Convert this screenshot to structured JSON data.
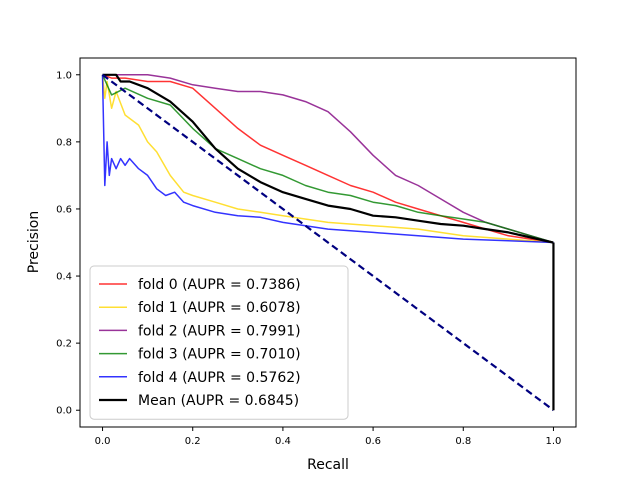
{
  "chart_data": {
    "type": "line",
    "title": "",
    "xlabel": "Recall",
    "ylabel": "Precision",
    "xlim": [
      -0.05,
      1.05
    ],
    "ylim": [
      -0.05,
      1.05
    ],
    "xticks": [
      0.0,
      0.2,
      0.4,
      0.6,
      0.8,
      1.0
    ],
    "yticks": [
      0.0,
      0.2,
      0.4,
      0.6,
      0.8,
      1.0
    ],
    "xtick_labels": [
      "0.0",
      "0.2",
      "0.4",
      "0.6",
      "0.8",
      "1.0"
    ],
    "ytick_labels": [
      "0.0",
      "0.2",
      "0.4",
      "0.6",
      "0.8",
      "1.0"
    ],
    "grid": false,
    "legend_position": "lower-left",
    "series": [
      {
        "name": "fold 0 (AUPR = 0.7386)",
        "color": "#ff0000",
        "x": [
          0.0,
          0.02,
          0.05,
          0.1,
          0.15,
          0.2,
          0.25,
          0.3,
          0.35,
          0.4,
          0.45,
          0.5,
          0.55,
          0.6,
          0.65,
          0.7,
          0.75,
          0.8,
          0.85,
          0.9,
          0.95,
          1.0
        ],
        "y": [
          1.0,
          0.99,
          0.99,
          0.98,
          0.98,
          0.96,
          0.9,
          0.84,
          0.79,
          0.76,
          0.73,
          0.7,
          0.67,
          0.65,
          0.62,
          0.6,
          0.58,
          0.56,
          0.54,
          0.52,
          0.51,
          0.5
        ]
      },
      {
        "name": "fold 1 (AUPR = 0.6078)",
        "color": "#ffd700",
        "x": [
          0.0,
          0.005,
          0.01,
          0.02,
          0.03,
          0.05,
          0.08,
          0.1,
          0.12,
          0.15,
          0.18,
          0.2,
          0.25,
          0.3,
          0.35,
          0.4,
          0.5,
          0.6,
          0.7,
          0.8,
          0.9,
          1.0
        ],
        "y": [
          1.0,
          0.93,
          0.98,
          0.9,
          0.95,
          0.88,
          0.85,
          0.8,
          0.77,
          0.7,
          0.65,
          0.64,
          0.62,
          0.6,
          0.59,
          0.58,
          0.56,
          0.55,
          0.54,
          0.52,
          0.51,
          0.5
        ]
      },
      {
        "name": "fold 2 (AUPR = 0.7991)",
        "color": "#800080",
        "x": [
          0.0,
          0.05,
          0.1,
          0.15,
          0.2,
          0.25,
          0.3,
          0.35,
          0.4,
          0.45,
          0.5,
          0.55,
          0.6,
          0.65,
          0.7,
          0.75,
          0.8,
          0.85,
          0.9,
          0.95,
          1.0
        ],
        "y": [
          1.0,
          1.0,
          1.0,
          0.99,
          0.97,
          0.96,
          0.95,
          0.95,
          0.94,
          0.92,
          0.89,
          0.83,
          0.76,
          0.7,
          0.67,
          0.63,
          0.59,
          0.56,
          0.54,
          0.52,
          0.5
        ]
      },
      {
        "name": "fold 3 (AUPR = 0.7010)",
        "color": "#008000",
        "x": [
          0.0,
          0.02,
          0.05,
          0.1,
          0.15,
          0.2,
          0.25,
          0.3,
          0.35,
          0.4,
          0.45,
          0.5,
          0.55,
          0.6,
          0.65,
          0.7,
          0.75,
          0.8,
          0.85,
          0.9,
          0.95,
          1.0
        ],
        "y": [
          1.0,
          0.94,
          0.96,
          0.93,
          0.91,
          0.84,
          0.78,
          0.75,
          0.72,
          0.7,
          0.67,
          0.65,
          0.64,
          0.62,
          0.61,
          0.59,
          0.58,
          0.57,
          0.56,
          0.54,
          0.52,
          0.5
        ]
      },
      {
        "name": "fold 4 (AUPR = 0.5762)",
        "color": "#0000ff",
        "x": [
          0.0,
          0.005,
          0.01,
          0.015,
          0.02,
          0.03,
          0.04,
          0.05,
          0.06,
          0.08,
          0.1,
          0.12,
          0.14,
          0.16,
          0.18,
          0.2,
          0.25,
          0.3,
          0.35,
          0.4,
          0.5,
          0.6,
          0.7,
          0.8,
          0.9,
          1.0
        ],
        "y": [
          1.0,
          0.67,
          0.8,
          0.7,
          0.75,
          0.72,
          0.75,
          0.73,
          0.75,
          0.72,
          0.7,
          0.66,
          0.64,
          0.65,
          0.62,
          0.61,
          0.59,
          0.58,
          0.575,
          0.56,
          0.54,
          0.53,
          0.52,
          0.51,
          0.505,
          0.5
        ]
      },
      {
        "name": "Mean (AUPR = 0.6845)",
        "color": "#000000",
        "x": [
          0.0,
          0.03,
          0.04,
          0.06,
          0.1,
          0.15,
          0.2,
          0.25,
          0.3,
          0.35,
          0.4,
          0.45,
          0.5,
          0.55,
          0.6,
          0.65,
          0.7,
          0.75,
          0.8,
          0.85,
          0.9,
          0.95,
          0.999
        ],
        "y": [
          1.0,
          1.0,
          0.98,
          0.98,
          0.96,
          0.92,
          0.86,
          0.78,
          0.72,
          0.68,
          0.65,
          0.63,
          0.61,
          0.6,
          0.58,
          0.575,
          0.565,
          0.555,
          0.55,
          0.54,
          0.53,
          0.515,
          0.5
        ]
      },
      {
        "name": "",
        "color": "#000080",
        "style": "dashed",
        "x": [
          0.0,
          1.0
        ],
        "y": [
          1.0,
          0.0
        ]
      }
    ],
    "mean_vertical_segment": {
      "x": 1.0,
      "y_from": 0.5,
      "y_to": 0.0,
      "color": "#000000"
    }
  }
}
